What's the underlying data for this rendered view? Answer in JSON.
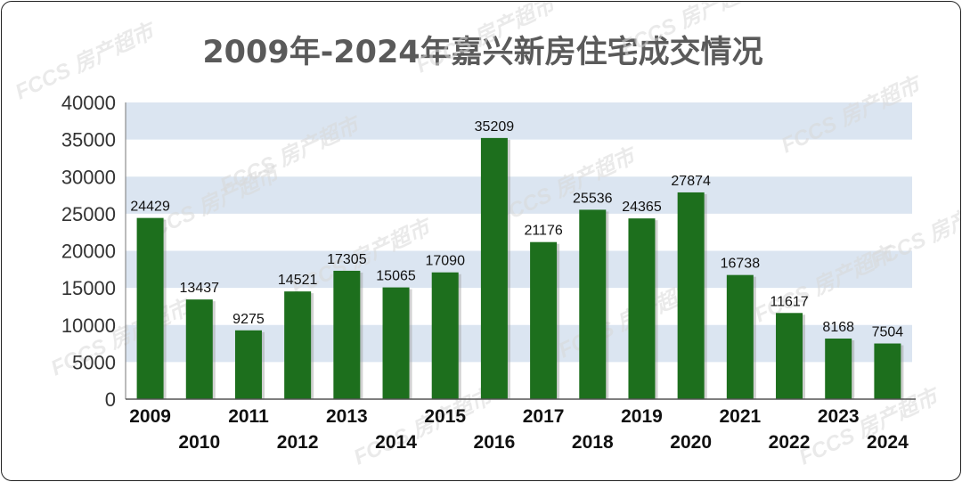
{
  "colors": {
    "bar": "#1d6f1d",
    "band": "#dbe5f1",
    "axis_text": "#333333",
    "title": "#5a5a5a"
  },
  "chart_data": {
    "type": "bar",
    "title": "2009年-2024年嘉兴新房住宅成交情况",
    "categories": [
      "2009",
      "2010",
      "2011",
      "2012",
      "2013",
      "2014",
      "2015",
      "2016",
      "2017",
      "2018",
      "2019",
      "2020",
      "2021",
      "2022",
      "2023",
      "2024"
    ],
    "values": [
      24429,
      13437,
      9275,
      14521,
      17305,
      15065,
      17090,
      35209,
      21176,
      25536,
      24365,
      27874,
      16738,
      11617,
      8168,
      7504
    ],
    "ylim": [
      0,
      40000
    ],
    "yticks": [
      0,
      5000,
      10000,
      15000,
      20000,
      25000,
      30000,
      35000,
      40000
    ],
    "xlabel": "",
    "ylabel": "",
    "grid": "alternating horizontal bands",
    "legend": "none",
    "data_labels": true,
    "watermark": "FCCS 房产超市"
  }
}
